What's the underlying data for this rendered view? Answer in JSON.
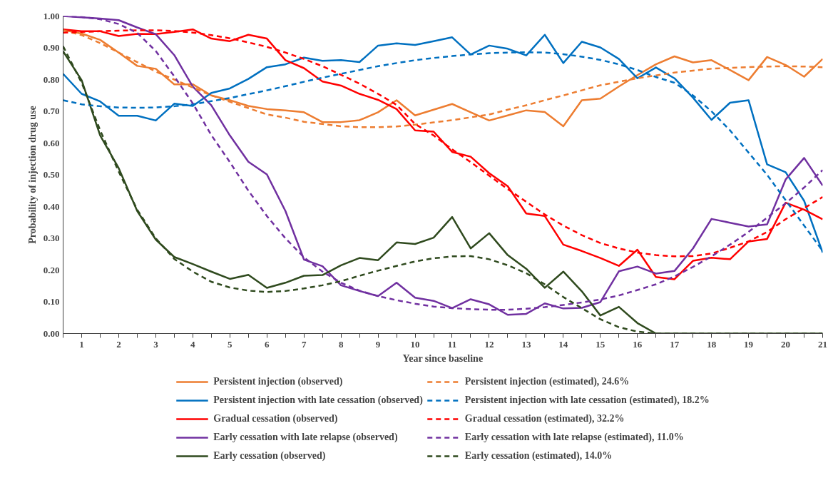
{
  "chart_data": {
    "type": "line",
    "xlabel": "Year since baseline",
    "ylabel": "Probability of injection drug use",
    "x": [
      0.5,
      1,
      1.5,
      2,
      2.5,
      3,
      3.5,
      4,
      4.5,
      5,
      5.5,
      6,
      6.5,
      7,
      7.5,
      8,
      8.5,
      9,
      9.5,
      10,
      10.5,
      11,
      11.5,
      12,
      12.5,
      13,
      13.5,
      14,
      14.5,
      15,
      15.5,
      16,
      16.5,
      17,
      17.5,
      18,
      18.5,
      19,
      19.5,
      20,
      20.5,
      21
    ],
    "xlim": [
      0.5,
      21
    ],
    "xticks": [
      {
        "value": 0.5,
        "label": null
      },
      1,
      {
        "value": 1.5,
        "label": null
      },
      2,
      {
        "value": 2.5,
        "label": null
      },
      3,
      {
        "value": 3.5,
        "label": null
      },
      4,
      {
        "value": 4.5,
        "label": null
      },
      5,
      {
        "value": 5.5,
        "label": null
      },
      6,
      {
        "value": 6.5,
        "label": null
      },
      7,
      {
        "value": 7.5,
        "label": null
      },
      8,
      {
        "value": 8.5,
        "label": null
      },
      9,
      {
        "value": 9.5,
        "label": null
      },
      10,
      {
        "value": 10.5,
        "label": null
      },
      11,
      {
        "value": 11.5,
        "label": null
      },
      12,
      {
        "value": 12.5,
        "label": null
      },
      13,
      {
        "value": 13.5,
        "label": null
      },
      14,
      {
        "value": 14.5,
        "label": null
      },
      15,
      {
        "value": 15.5,
        "label": null
      },
      16,
      {
        "value": 16.5,
        "label": null
      },
      17,
      {
        "value": 17.5,
        "label": null
      },
      18,
      {
        "value": 18.5,
        "label": null
      },
      19,
      {
        "value": 19.5,
        "label": null
      },
      20,
      {
        "value": 20.5,
        "label": null
      },
      21
    ],
    "ylim": [
      0,
      1
    ],
    "yticks": [
      {
        "value": 0,
        "label": "0.00"
      },
      {
        "value": 0.1,
        "label": "0.10"
      },
      {
        "value": 0.2,
        "label": "0.20"
      },
      {
        "value": 0.3,
        "label": "0.30"
      },
      {
        "value": 0.4,
        "label": "0.40"
      },
      {
        "value": 0.5,
        "label": "0.50"
      },
      {
        "value": 0.6,
        "label": "0.60"
      },
      {
        "value": 0.7,
        "label": "0.70"
      },
      {
        "value": 0.8,
        "label": "0.80"
      },
      {
        "value": 0.9,
        "label": "0.90"
      },
      {
        "value": 1,
        "label": "1.00"
      }
    ],
    "grid": false,
    "legend": "bottom",
    "series": [
      {
        "name": "Persistent injection (observed)",
        "color": "#ed7d31",
        "line_style": "solid",
        "values": [
          0.956,
          0.945,
          0.925,
          0.885,
          0.843,
          0.834,
          0.785,
          0.785,
          0.75,
          0.735,
          0.717,
          0.707,
          0.703,
          0.697,
          0.666,
          0.666,
          0.672,
          0.697,
          0.735,
          0.687,
          0.705,
          0.723,
          0.697,
          0.671,
          0.687,
          0.703,
          0.698,
          0.653,
          0.735,
          0.74,
          0.778,
          0.814,
          0.848,
          0.873,
          0.854,
          0.861,
          0.83,
          0.798,
          0.871,
          0.846,
          0.809,
          0.865
        ]
      },
      {
        "name": "Persistent injection with late cessation (observed)",
        "color": "#0070c0",
        "line_style": "solid",
        "values": [
          0.818,
          0.755,
          0.731,
          0.686,
          0.686,
          0.671,
          0.724,
          0.717,
          0.758,
          0.772,
          0.802,
          0.839,
          0.848,
          0.869,
          0.859,
          0.861,
          0.855,
          0.907,
          0.914,
          0.909,
          0.921,
          0.933,
          0.879,
          0.907,
          0.897,
          0.876,
          0.941,
          0.852,
          0.919,
          0.901,
          0.865,
          0.804,
          0.838,
          0.804,
          0.743,
          0.673,
          0.727,
          0.735,
          0.533,
          0.508,
          0.418,
          0.255
        ]
      },
      {
        "name": "Gradual cessation (observed)",
        "color": "#ff0000",
        "line_style": "solid",
        "values": [
          0.958,
          0.952,
          0.952,
          0.937,
          0.944,
          0.943,
          0.95,
          0.958,
          0.929,
          0.921,
          0.941,
          0.929,
          0.861,
          0.836,
          0.794,
          0.781,
          0.755,
          0.736,
          0.707,
          0.64,
          0.636,
          0.572,
          0.557,
          0.505,
          0.464,
          0.378,
          0.37,
          0.28,
          0.26,
          0.238,
          0.213,
          0.264,
          0.178,
          0.171,
          0.229,
          0.239,
          0.234,
          0.29,
          0.298,
          0.412,
          0.39,
          0.36
        ]
      },
      {
        "name": "Early cessation with late relapse (observed)",
        "color": "#7030a0",
        "line_style": "solid",
        "values": [
          1.0,
          0.996,
          0.992,
          0.987,
          0.964,
          0.943,
          0.877,
          0.778,
          0.719,
          0.624,
          0.541,
          0.501,
          0.386,
          0.233,
          0.212,
          0.152,
          0.134,
          0.118,
          0.16,
          0.113,
          0.103,
          0.08,
          0.108,
          0.092,
          0.059,
          0.062,
          0.095,
          0.079,
          0.081,
          0.099,
          0.196,
          0.211,
          0.189,
          0.197,
          0.268,
          0.361,
          0.349,
          0.337,
          0.344,
          0.485,
          0.553,
          0.466
        ]
      },
      {
        "name": "Early cessation (observed)",
        "color": "#2f4a1e",
        "line_style": "solid",
        "values": [
          0.889,
          0.798,
          0.624,
          0.521,
          0.386,
          0.296,
          0.241,
          0.219,
          0.195,
          0.172,
          0.185,
          0.144,
          0.16,
          0.182,
          0.184,
          0.215,
          0.238,
          0.231,
          0.287,
          0.282,
          0.302,
          0.367,
          0.268,
          0.316,
          0.247,
          0.204,
          0.144,
          0.195,
          0.133,
          0.057,
          0.084,
          0.033,
          0,
          0,
          0,
          0,
          0,
          0,
          0,
          0,
          0,
          0
        ]
      },
      {
        "name": "Persistent injection (estimated), 24.6%",
        "color": "#ed7d31",
        "line_style": "dashed",
        "values": [
          0.955,
          0.94,
          0.915,
          0.885,
          0.855,
          0.825,
          0.8,
          0.775,
          0.75,
          0.73,
          0.71,
          0.69,
          0.68,
          0.667,
          0.66,
          0.653,
          0.65,
          0.65,
          0.652,
          0.658,
          0.665,
          0.672,
          0.681,
          0.69,
          0.705,
          0.719,
          0.735,
          0.75,
          0.766,
          0.782,
          0.793,
          0.804,
          0.813,
          0.822,
          0.828,
          0.834,
          0.837,
          0.839,
          0.841,
          0.842,
          0.841,
          0.839
        ]
      },
      {
        "name": "Persistent injection with late cessation (estimated), 18.2%",
        "color": "#0070c0",
        "line_style": "dashed",
        "values": [
          0.735,
          0.722,
          0.716,
          0.712,
          0.711,
          0.712,
          0.716,
          0.722,
          0.732,
          0.742,
          0.754,
          0.766,
          0.779,
          0.793,
          0.806,
          0.818,
          0.83,
          0.842,
          0.852,
          0.861,
          0.868,
          0.874,
          0.879,
          0.883,
          0.885,
          0.886,
          0.885,
          0.88,
          0.872,
          0.862,
          0.848,
          0.83,
          0.808,
          0.79,
          0.75,
          0.7,
          0.64,
          0.57,
          0.5,
          0.42,
          0.34,
          0.26
        ]
      },
      {
        "name": "Gradual cessation (estimated), 32.2%",
        "color": "#ff0000",
        "line_style": "dashed",
        "values": [
          0.948,
          0.95,
          0.952,
          0.954,
          0.955,
          0.955,
          0.953,
          0.948,
          0.94,
          0.93,
          0.917,
          0.903,
          0.885,
          0.865,
          0.842,
          0.815,
          0.787,
          0.755,
          0.72,
          0.66,
          0.624,
          0.58,
          0.54,
          0.497,
          0.455,
          0.415,
          0.375,
          0.34,
          0.31,
          0.285,
          0.268,
          0.255,
          0.247,
          0.243,
          0.244,
          0.252,
          0.27,
          0.29,
          0.32,
          0.36,
          0.395,
          0.43
        ]
      },
      {
        "name": "Early cessation with late relapse (estimated), 11.0%",
        "color": "#7030a0",
        "line_style": "dashed",
        "values": [
          1.0,
          0.997,
          0.99,
          0.975,
          0.947,
          0.89,
          0.81,
          0.725,
          0.625,
          0.54,
          0.45,
          0.37,
          0.3,
          0.24,
          0.195,
          0.16,
          0.135,
          0.118,
          0.105,
          0.094,
          0.085,
          0.08,
          0.077,
          0.075,
          0.075,
          0.078,
          0.083,
          0.09,
          0.098,
          0.107,
          0.12,
          0.137,
          0.155,
          0.18,
          0.21,
          0.243,
          0.28,
          0.32,
          0.365,
          0.41,
          0.46,
          0.515
        ]
      },
      {
        "name": "Early cessation (estimated), 14.0%",
        "color": "#2f4a1e",
        "line_style": "dashed",
        "values": [
          0.905,
          0.79,
          0.64,
          0.51,
          0.39,
          0.3,
          0.235,
          0.195,
          0.163,
          0.145,
          0.135,
          0.131,
          0.134,
          0.142,
          0.152,
          0.165,
          0.182,
          0.198,
          0.213,
          0.227,
          0.237,
          0.243,
          0.244,
          0.234,
          0.215,
          0.19,
          0.155,
          0.115,
          0.08,
          0.045,
          0.02,
          0.006,
          0,
          0,
          0,
          0,
          0,
          0,
          0,
          0,
          0,
          0
        ]
      }
    ]
  }
}
